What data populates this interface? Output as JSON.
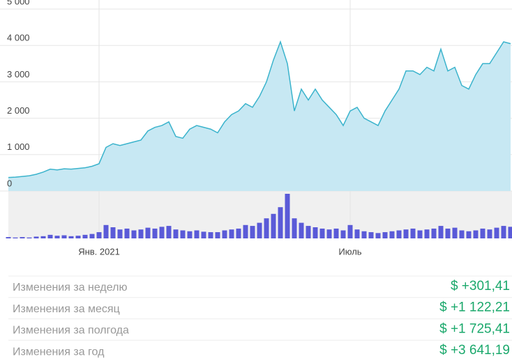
{
  "chart_data": {
    "type": "area",
    "categories": [
      null,
      null,
      null,
      null,
      null,
      null,
      null,
      null,
      null,
      null,
      null,
      null,
      null,
      "Янв. 2021",
      null,
      null,
      null,
      null,
      null,
      null,
      null,
      null,
      null,
      null,
      null,
      null,
      null,
      null,
      null,
      null,
      null,
      null,
      null,
      null,
      null,
      null,
      null,
      null,
      null,
      null,
      null,
      null,
      null,
      null,
      null,
      null,
      null,
      null,
      null,
      "Июль",
      null,
      null,
      null,
      null,
      null,
      null,
      null,
      null,
      null,
      null,
      null,
      null,
      null,
      null,
      null,
      null,
      null,
      null,
      null,
      null,
      null,
      null,
      null
    ],
    "series": [
      {
        "color": "#3ab3cc",
        "values": [
          370,
          380,
          400,
          420,
          460,
          520,
          600,
          580,
          610,
          600,
          620,
          640,
          680,
          750,
          1200,
          1300,
          1250,
          1300,
          1350,
          1400,
          1650,
          1750,
          1800,
          1900,
          1500,
          1450,
          1700,
          1800,
          1750,
          1700,
          1600,
          1900,
          2100,
          2200,
          2400,
          2300,
          2600,
          3000,
          3600,
          4100,
          3500,
          2200,
          2800,
          2500,
          2800,
          2500,
          2300,
          2100,
          1800,
          2200,
          2300,
          2000,
          1900,
          1800,
          2200,
          2500,
          2800,
          3300,
          3300,
          3200,
          3400,
          3300,
          3900,
          3300,
          3400,
          2900,
          2800,
          3200,
          3500,
          3500,
          3800,
          4100,
          4050
        ]
      }
    ],
    "volume": {
      "color": "#5a5ad8",
      "values": [
        3,
        2,
        3,
        2,
        4,
        5,
        8,
        6,
        7,
        5,
        6,
        8,
        10,
        14,
        30,
        25,
        20,
        22,
        18,
        20,
        24,
        22,
        26,
        28,
        20,
        18,
        16,
        18,
        15,
        14,
        14,
        18,
        20,
        22,
        30,
        28,
        35,
        45,
        55,
        70,
        100,
        45,
        35,
        28,
        25,
        22,
        20,
        22,
        18,
        30,
        20,
        16,
        14,
        12,
        14,
        16,
        18,
        20,
        22,
        18,
        20,
        22,
        28,
        22,
        24,
        18,
        16,
        18,
        22,
        20,
        24,
        28,
        26
      ]
    },
    "ylim": [
      0,
      5000
    ],
    "yticks": [
      0,
      {
        "value": 1000,
        "label": "1 000"
      },
      {
        "value": 2000,
        "label": "2 000"
      },
      {
        "value": 3000,
        "label": "3 000"
      },
      {
        "value": 4000,
        "label": "4 000"
      },
      {
        "value": 5000,
        "label": "5 000"
      }
    ],
    "grid": true
  },
  "table": {
    "rows": [
      [
        "Изменения за неделю",
        "$ +301,41"
      ],
      [
        "Изменения за месяц",
        "$ +1 122,21"
      ],
      [
        "Изменения за полгода",
        "$ +1 725,41"
      ],
      [
        "Изменения за год",
        "$ +3 641,19"
      ]
    ]
  }
}
